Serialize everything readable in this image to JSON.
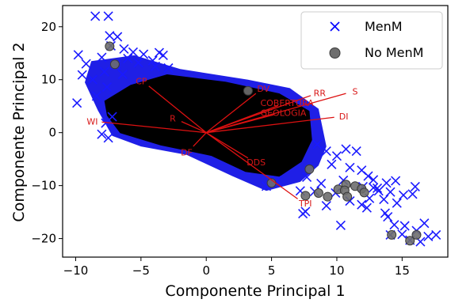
{
  "chart_data": {
    "type": "scatter",
    "xlabel": "Componente Principal 1",
    "ylabel": "Componente Principal 2",
    "xlim": [
      -11,
      18.5
    ],
    "ylim": [
      -23.5,
      24
    ],
    "xticks": [
      -10,
      -5,
      0,
      5,
      10,
      15
    ],
    "xtick_labels": [
      "−10",
      "−5",
      "0",
      "5",
      "10",
      "15"
    ],
    "yticks": [
      20,
      10,
      0,
      -10,
      -20
    ],
    "ytick_labels": [
      "20",
      "10",
      "0",
      "−10",
      "−20"
    ],
    "grid": false,
    "legend": {
      "position": "top-right",
      "entries": [
        {
          "label": "MenM",
          "marker": "x",
          "color": "#0000ff"
        },
        {
          "label": "No MenM",
          "marker": "o",
          "color": "#555555"
        }
      ]
    },
    "series": [
      {
        "name": "MenM",
        "marker": "x",
        "color": "#1a1aff",
        "points": [
          [
            -8.5,
            22
          ],
          [
            -7.5,
            22
          ],
          [
            -9.8,
            14.7
          ],
          [
            -9.2,
            13
          ],
          [
            -7.4,
            18.3
          ],
          [
            -6.8,
            18.1
          ],
          [
            -6.3,
            15.8
          ],
          [
            -5.6,
            15.2
          ],
          [
            -4.8,
            14.8
          ],
          [
            -6.0,
            14.0
          ],
          [
            -5.2,
            13.2
          ],
          [
            -4.1,
            13.6
          ],
          [
            -3.6,
            15.1
          ],
          [
            -2.9,
            12.2
          ],
          [
            -3.3,
            14.6
          ],
          [
            -3.9,
            12.5
          ],
          [
            -6.9,
            12.8
          ],
          [
            -7.3,
            16.4
          ],
          [
            -8.0,
            14.2
          ],
          [
            -6.4,
            11.0
          ],
          [
            -7.8,
            11.5
          ],
          [
            -9.5,
            10.9
          ],
          [
            -8.7,
            10.0
          ],
          [
            -9.9,
            5.6
          ],
          [
            -8.4,
            6.9
          ],
          [
            -7.6,
            8.6
          ],
          [
            -7.2,
            3.0
          ],
          [
            -7.7,
            1.8
          ],
          [
            -8.0,
            -0.3
          ],
          [
            -7.5,
            -1.0
          ],
          [
            8.5,
            -2.2
          ],
          [
            9.2,
            -3.5
          ],
          [
            10.0,
            -4.4
          ],
          [
            10.7,
            -3.1
          ],
          [
            11.5,
            -3.5
          ],
          [
            9.6,
            -6.0
          ],
          [
            11.0,
            -6.6
          ],
          [
            11.9,
            -7.1
          ],
          [
            12.4,
            -8.2
          ],
          [
            12.8,
            -8.9
          ],
          [
            13.1,
            -10.5
          ],
          [
            12.0,
            -10.2
          ],
          [
            13.8,
            -9.5
          ],
          [
            14.5,
            -9.1
          ],
          [
            14.1,
            -11.2
          ],
          [
            15.1,
            -11.8
          ],
          [
            13.6,
            -12.6
          ],
          [
            12.5,
            -12.4
          ],
          [
            14.6,
            -13.3
          ],
          [
            15.8,
            -11.6
          ],
          [
            16.0,
            -10.2
          ],
          [
            13.7,
            -15.2
          ],
          [
            13.9,
            -15.9
          ],
          [
            14.4,
            -17.4
          ],
          [
            15.2,
            -17.6
          ],
          [
            16.1,
            -18.5
          ],
          [
            16.7,
            -17.1
          ],
          [
            17.0,
            -19.6
          ],
          [
            17.6,
            -19.3
          ],
          [
            16.4,
            -20.6
          ],
          [
            15.6,
            -20.3
          ],
          [
            15.0,
            -19.2
          ],
          [
            14.1,
            -19.3
          ],
          [
            10.3,
            -17.5
          ],
          [
            11.9,
            -13.6
          ],
          [
            11.0,
            -12.9
          ],
          [
            9.2,
            -13.8
          ],
          [
            8.3,
            -11.1
          ],
          [
            7.2,
            -11.0
          ],
          [
            7.6,
            -14.9
          ],
          [
            7.4,
            -15.3
          ],
          [
            5.4,
            -9.0
          ],
          [
            4.6,
            -10.1
          ],
          [
            10.5,
            -9.0
          ],
          [
            8.8,
            -9.6
          ],
          [
            7.7,
            -8.4
          ],
          [
            9.9,
            -11.4
          ],
          [
            13.2,
            -11.0
          ],
          [
            12.3,
            -14.2
          ],
          [
            12.8,
            -10.4
          ]
        ]
      },
      {
        "name": "No MenM",
        "marker": "o",
        "color": "#555555",
        "points": [
          [
            -7.4,
            16.3
          ],
          [
            -7.0,
            12.9
          ],
          [
            3.2,
            7.9
          ],
          [
            7.9,
            -6.9
          ],
          [
            8.6,
            -11.4
          ],
          [
            9.3,
            -12.1
          ],
          [
            10.1,
            -10.7
          ],
          [
            10.7,
            -9.8
          ],
          [
            11.4,
            -10.1
          ],
          [
            11.9,
            -10.6
          ],
          [
            10.6,
            -10.9
          ],
          [
            10.8,
            -12.1
          ],
          [
            12.1,
            -11.3
          ],
          [
            14.2,
            -19.3
          ],
          [
            15.6,
            -20.4
          ],
          [
            16.1,
            -19.3
          ],
          [
            7.6,
            -11.9
          ],
          [
            5.0,
            -9.5
          ]
        ]
      }
    ],
    "vectors": [
      {
        "label": "CP",
        "x": -4.4,
        "y": 8.8
      },
      {
        "label": "WI",
        "x": -8.0,
        "y": 2.0
      },
      {
        "label": "R",
        "x": -1.9,
        "y": 2.1
      },
      {
        "label": "DF",
        "x": -1.0,
        "y": -2.6
      },
      {
        "label": "DV",
        "x": 3.8,
        "y": 7.4
      },
      {
        "label": "RR",
        "x": 8.0,
        "y": 7.0
      },
      {
        "label": "S",
        "x": 10.7,
        "y": 7.4
      },
      {
        "label": "COBERTURA",
        "x": 5.5,
        "y": 5.1
      },
      {
        "label": "GEOLOGIA",
        "x": 5.2,
        "y": 3.4
      },
      {
        "label": "DI",
        "x": 9.8,
        "y": 2.9
      },
      {
        "label": "DDS",
        "x": 3.2,
        "y": -4.8
      },
      {
        "label": "TPI",
        "x": 7.0,
        "y": -12.5
      }
    ]
  }
}
